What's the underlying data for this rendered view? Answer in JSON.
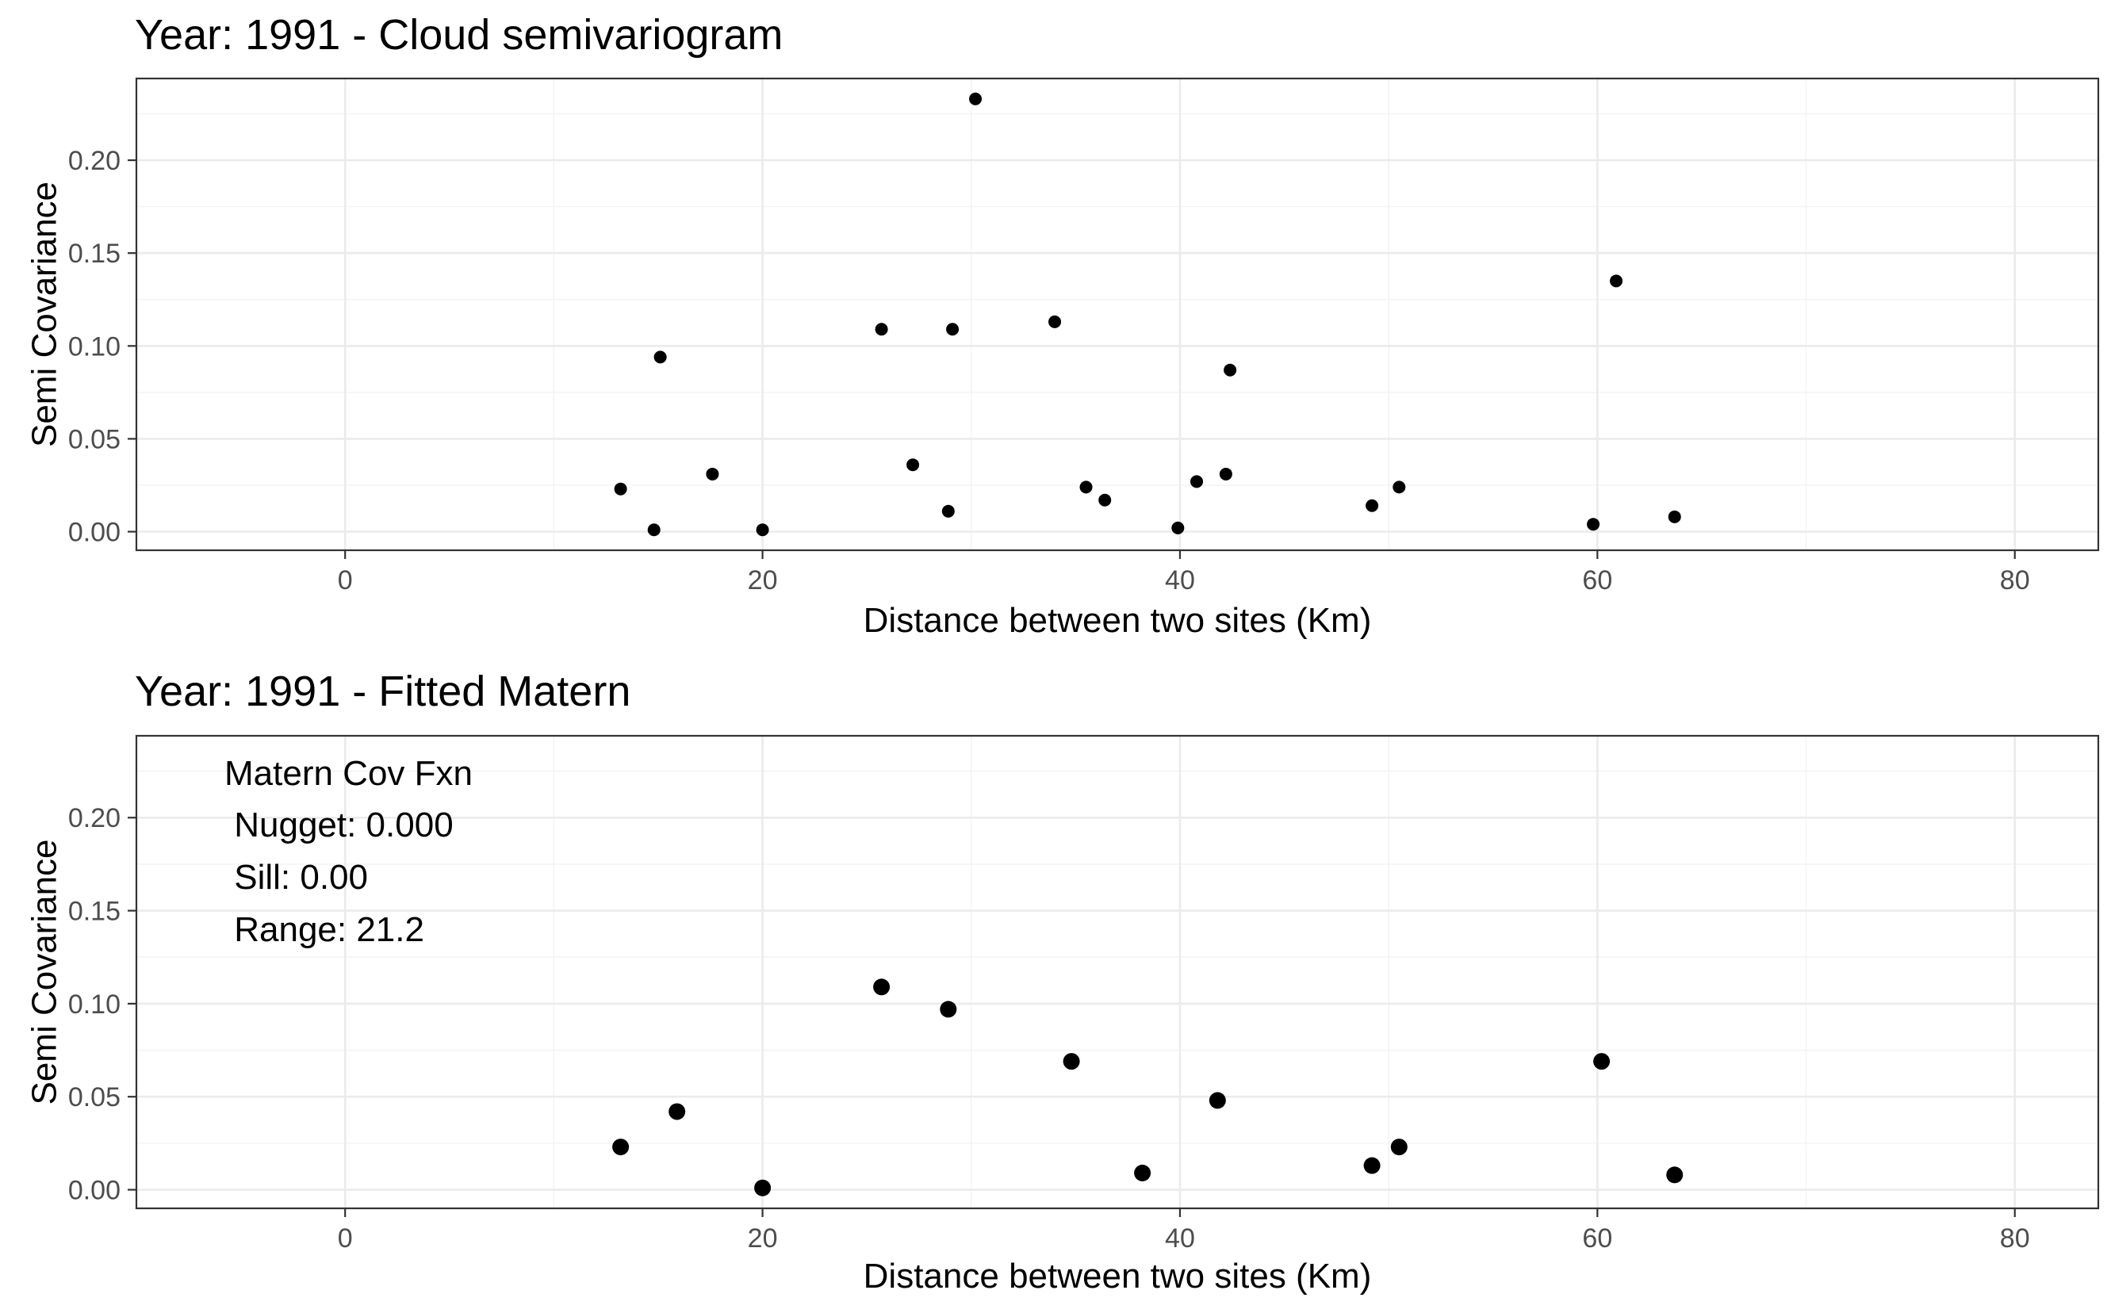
{
  "chart_data": [
    {
      "type": "scatter",
      "title": "Year: 1991 - Cloud semivariogram",
      "xlabel": "Distance between two sites (Km)",
      "ylabel": "Semi Covariance",
      "xlim": [
        -10,
        84
      ],
      "ylim": [
        -0.01,
        0.244
      ],
      "x_ticks": [
        0,
        20,
        40,
        60,
        80
      ],
      "y_ticks": [
        0.0,
        0.05,
        0.1,
        0.15,
        0.2
      ],
      "x_tick_labels": [
        "0",
        "20",
        "40",
        "60",
        "80"
      ],
      "y_tick_labels": [
        "0.00",
        "0.05",
        "0.10",
        "0.15",
        "0.20"
      ],
      "grid": true,
      "point_color": "#000000",
      "points": [
        {
          "x": 13.2,
          "y": 0.023
        },
        {
          "x": 14.8,
          "y": 0.001
        },
        {
          "x": 15.1,
          "y": 0.094
        },
        {
          "x": 17.6,
          "y": 0.031
        },
        {
          "x": 20.0,
          "y": 0.001
        },
        {
          "x": 25.7,
          "y": 0.109
        },
        {
          "x": 27.2,
          "y": 0.036
        },
        {
          "x": 28.9,
          "y": 0.011
        },
        {
          "x": 29.1,
          "y": 0.109
        },
        {
          "x": 30.2,
          "y": 0.233
        },
        {
          "x": 34.0,
          "y": 0.113
        },
        {
          "x": 35.5,
          "y": 0.024
        },
        {
          "x": 36.4,
          "y": 0.017
        },
        {
          "x": 39.9,
          "y": 0.002
        },
        {
          "x": 40.8,
          "y": 0.027
        },
        {
          "x": 42.2,
          "y": 0.031
        },
        {
          "x": 42.4,
          "y": 0.087
        },
        {
          "x": 49.2,
          "y": 0.014
        },
        {
          "x": 50.5,
          "y": 0.024
        },
        {
          "x": 59.8,
          "y": 0.004
        },
        {
          "x": 60.9,
          "y": 0.135
        },
        {
          "x": 63.7,
          "y": 0.008
        }
      ]
    },
    {
      "type": "scatter",
      "title": "Year: 1991 - Fitted Matern",
      "xlabel": "Distance between two sites (Km)",
      "ylabel": "Semi Covariance",
      "xlim": [
        -10,
        84
      ],
      "ylim": [
        -0.01,
        0.244
      ],
      "x_ticks": [
        0,
        20,
        40,
        60,
        80
      ],
      "y_ticks": [
        0.0,
        0.05,
        0.1,
        0.15,
        0.2
      ],
      "x_tick_labels": [
        "0",
        "20",
        "40",
        "60",
        "80"
      ],
      "y_tick_labels": [
        "0.00",
        "0.05",
        "0.10",
        "0.15",
        "0.20"
      ],
      "grid": true,
      "point_color": "#000000",
      "annotation": [
        "Matern Cov Fxn",
        " Nugget: 0.000",
        " Sill: 0.00",
        " Range: 21.2"
      ],
      "points": [
        {
          "x": 13.2,
          "y": 0.023
        },
        {
          "x": 15.9,
          "y": 0.042
        },
        {
          "x": 20.0,
          "y": 0.001
        },
        {
          "x": 25.7,
          "y": 0.109
        },
        {
          "x": 28.9,
          "y": 0.097
        },
        {
          "x": 34.8,
          "y": 0.069
        },
        {
          "x": 38.2,
          "y": 0.009
        },
        {
          "x": 41.8,
          "y": 0.048
        },
        {
          "x": 49.2,
          "y": 0.013
        },
        {
          "x": 50.5,
          "y": 0.023
        },
        {
          "x": 60.2,
          "y": 0.069
        },
        {
          "x": 63.7,
          "y": 0.008
        }
      ]
    }
  ]
}
